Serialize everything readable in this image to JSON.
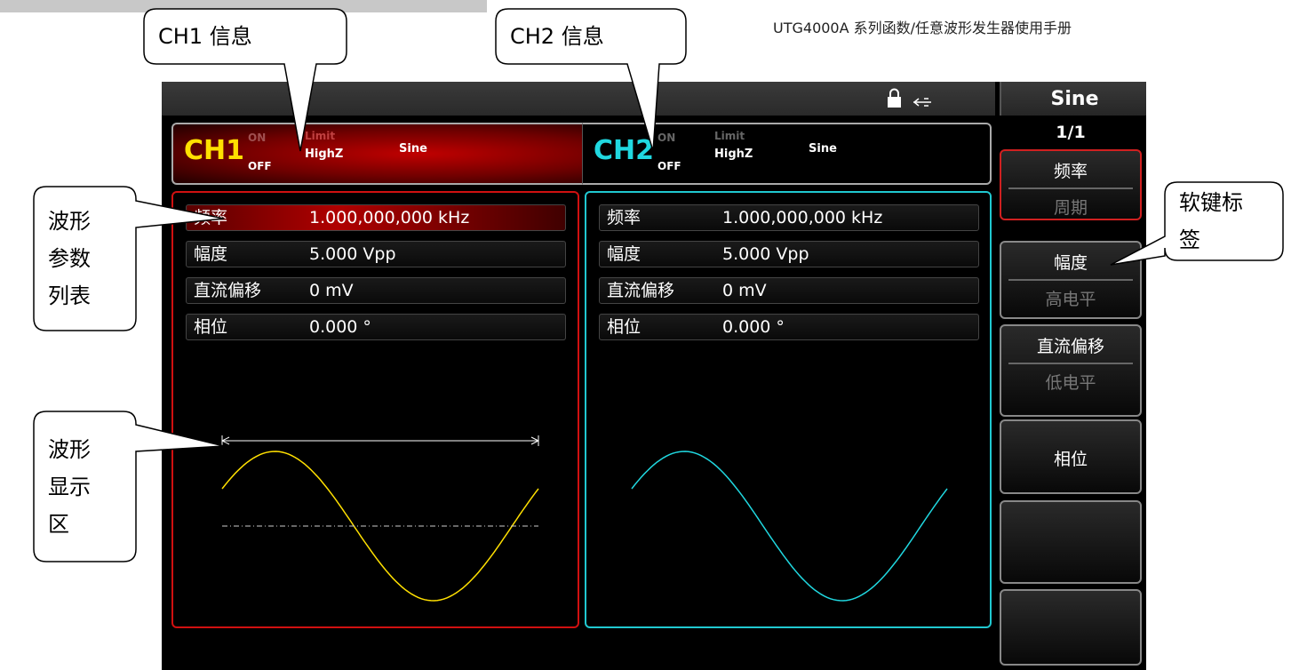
{
  "header": {
    "title": "UTG4000A 系列函数/任意波形发生器使用手册"
  },
  "screen": {
    "softkey_title": "Sine",
    "page": "1/1",
    "channels": [
      {
        "name": "CH1",
        "on": "ON",
        "off": "OFF",
        "limit": "Limit",
        "load": "HighZ",
        "wave": "Sine",
        "params": [
          [
            "频率",
            "1.000,000,000 kHz"
          ],
          [
            "幅度",
            "5.000 Vpp"
          ],
          [
            "直流偏移",
            "0 mV"
          ],
          [
            "相位",
            "0.000 °"
          ]
        ]
      },
      {
        "name": "CH2",
        "on": "ON",
        "off": "OFF",
        "limit": "Limit",
        "load": "HighZ",
        "wave": "Sine",
        "params": [
          [
            "频率",
            "1.000,000,000 kHz"
          ],
          [
            "幅度",
            "5.000 Vpp"
          ],
          [
            "直流偏移",
            "0 mV"
          ],
          [
            "相位",
            "0.000 °"
          ]
        ]
      }
    ],
    "softkeys": [
      [
        "频率",
        "周期"
      ],
      [
        "幅度",
        "高电平"
      ],
      [
        "直流偏移",
        "低电平"
      ],
      [
        "相位"
      ],
      [],
      []
    ]
  },
  "callouts": [
    {
      "lines": [
        "CH1 信息"
      ]
    },
    {
      "lines": [
        "CH2 信息"
      ]
    },
    {
      "lines": [
        "波形",
        "参数",
        "列表"
      ]
    },
    {
      "lines": [
        "波形",
        "显示",
        "区"
      ]
    },
    {
      "lines": [
        "软键标",
        "签"
      ]
    }
  ]
}
